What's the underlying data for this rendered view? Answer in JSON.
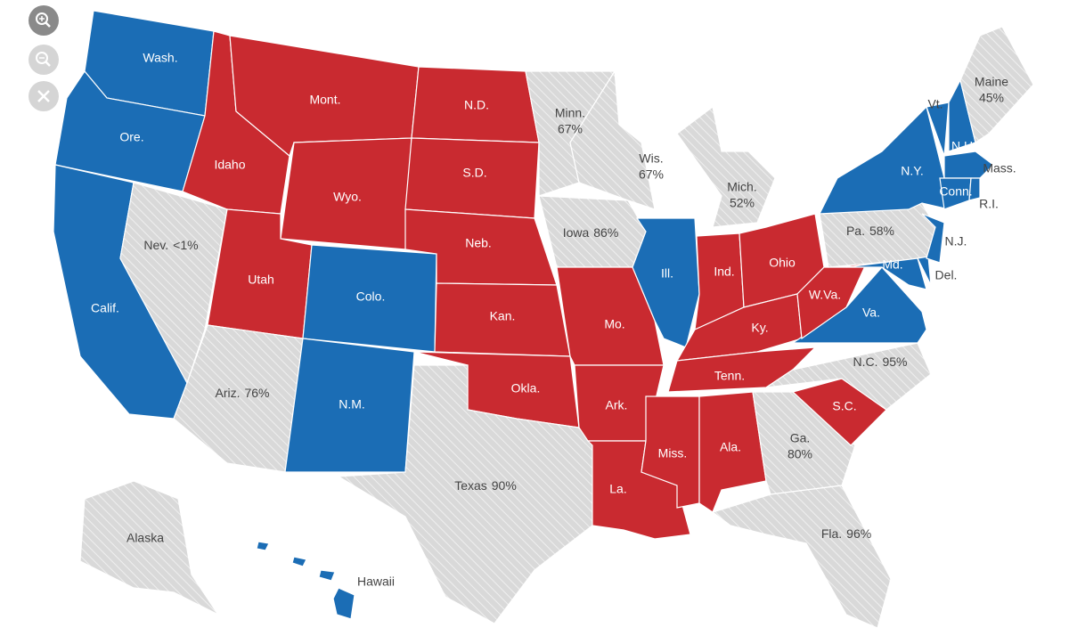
{
  "colors": {
    "dem": "#1b6db5",
    "rep": "#c92a30",
    "pending": "#d9d9d9"
  },
  "states": [
    {
      "label": "Wash.",
      "status": "dem"
    },
    {
      "label": "Ore.",
      "status": "dem"
    },
    {
      "label": "Calif.",
      "status": "dem"
    },
    {
      "label": "Nev.",
      "reported": "<1%",
      "status": "pending"
    },
    {
      "label": "Idaho",
      "status": "rep"
    },
    {
      "label": "Mont.",
      "status": "rep"
    },
    {
      "label": "Wyo.",
      "status": "rep"
    },
    {
      "label": "Utah",
      "status": "rep"
    },
    {
      "label": "Colo.",
      "status": "dem"
    },
    {
      "label": "Ariz.",
      "reported": "76%",
      "status": "pending"
    },
    {
      "label": "N.M.",
      "status": "dem"
    },
    {
      "label": "N.D.",
      "status": "rep"
    },
    {
      "label": "S.D.",
      "status": "rep"
    },
    {
      "label": "Neb.",
      "status": "rep"
    },
    {
      "label": "Kan.",
      "status": "rep"
    },
    {
      "label": "Okla.",
      "status": "rep"
    },
    {
      "label": "Texas",
      "reported": "90%",
      "status": "pending"
    },
    {
      "label": "Minn.",
      "reported": "67%",
      "status": "pending"
    },
    {
      "label": "Iowa",
      "reported": "86%",
      "status": "pending"
    },
    {
      "label": "Mo.",
      "status": "rep"
    },
    {
      "label": "Ark.",
      "status": "rep"
    },
    {
      "label": "La.",
      "status": "rep"
    },
    {
      "label": "Wis.",
      "reported": "67%",
      "status": "pending"
    },
    {
      "label": "Ill.",
      "status": "dem"
    },
    {
      "label": "Mich.",
      "reported": "52%",
      "status": "pending"
    },
    {
      "label": "Ind.",
      "status": "rep"
    },
    {
      "label": "Ohio",
      "status": "rep"
    },
    {
      "label": "Ky.",
      "status": "rep"
    },
    {
      "label": "Tenn.",
      "status": "rep"
    },
    {
      "label": "Miss.",
      "status": "rep"
    },
    {
      "label": "Ala.",
      "status": "rep"
    },
    {
      "label": "Ga.",
      "reported": "80%",
      "status": "pending"
    },
    {
      "label": "Fla.",
      "reported": "96%",
      "status": "pending"
    },
    {
      "label": "S.C.",
      "status": "rep"
    },
    {
      "label": "N.C.",
      "reported": "95%",
      "status": "pending"
    },
    {
      "label": "Va.",
      "status": "dem"
    },
    {
      "label": "W.Va.",
      "status": "rep"
    },
    {
      "label": "Pa.",
      "reported": "58%",
      "status": "pending"
    },
    {
      "label": "Md.",
      "status": "dem"
    },
    {
      "label": "Del.",
      "status": "dem"
    },
    {
      "label": "N.J.",
      "status": "dem"
    },
    {
      "label": "N.Y.",
      "status": "dem"
    },
    {
      "label": "Vt.",
      "status": "dem"
    },
    {
      "label": "N.H.",
      "status": "dem"
    },
    {
      "label": "Mass.",
      "status": "dem"
    },
    {
      "label": "Conn.",
      "status": "dem"
    },
    {
      "label": "R.I.",
      "status": "dem"
    },
    {
      "label": "Maine",
      "reported": "45%",
      "status": "pending"
    },
    {
      "label": "Alaska",
      "status": "pending"
    },
    {
      "label": "Hawaii",
      "status": "dem"
    }
  ]
}
